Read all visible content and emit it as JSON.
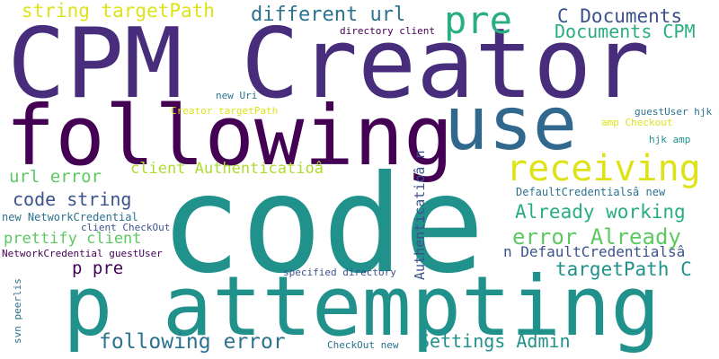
{
  "palette": {
    "dark_purple": "#440154",
    "indigo": "#472d7b",
    "blue_purple": "#3b528b",
    "steel_blue": "#2c728e",
    "teal": "#21918c",
    "green_teal": "#28ae80",
    "green": "#5ec962",
    "lime": "#addc30",
    "yellow": "#dde318"
  },
  "words": [
    "CPM Creator",
    "code",
    "following",
    "use",
    "p attempting",
    "pre",
    "receiving",
    "string targetPath",
    "different url",
    "C Documents",
    "Documents CPM",
    "directory client",
    "new Uri",
    "Creator targetPath",
    "guestUser hjk",
    "amp Checkout",
    "hjk amp",
    "url error",
    "client Authenticatioâ",
    "code string",
    "new NetworkCredential",
    "client CheckOut",
    "prettify client",
    "NetworkCredential guestUser",
    "p pre",
    "Already working",
    "error Already",
    "DefaultCredentialsâ new",
    "n DefaultCredentialsâ",
    "targetPath C",
    "Authenticatioâ n",
    "specified directory",
    "svn peerlis",
    "following error",
    "Settings Admin",
    "CheckOut new"
  ]
}
